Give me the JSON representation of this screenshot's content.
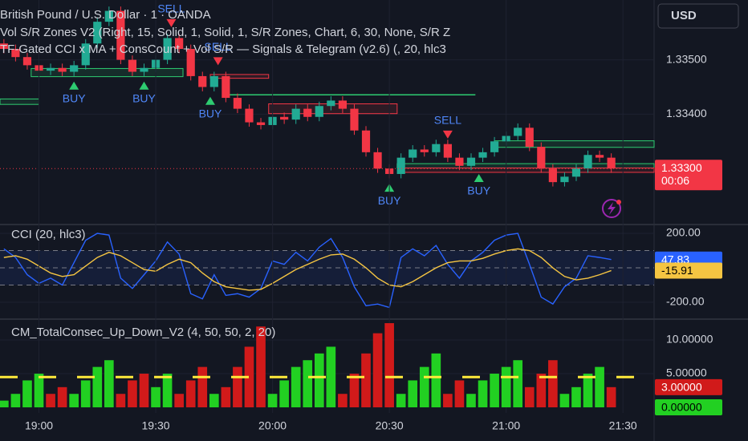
{
  "chart_data": [
    {
      "type": "candlestick",
      "title": "British Pound / U.S. Dollar · 1 · OANDA",
      "indicators": [
        "Vol S/R Zones V2 (Right, 15, Solid, 1, Solid, 1, S/R Zones, Chart, 6, 30, None, S/R Z",
        "TF-Gated CCI x MA + ConsCount + Vol S/R — Signals & Telegram (v2.6) (, 20, hlc3"
      ],
      "currency": "USD",
      "countdown": "00:06",
      "up_color": "#22ab94",
      "down_color": "#f23645",
      "x": [
        "18:51",
        "18:54",
        "18:57",
        "19:00",
        "19:03",
        "19:06",
        "19:09",
        "19:12",
        "19:15",
        "19:18",
        "19:21",
        "19:24",
        "19:27",
        "19:30",
        "19:33",
        "19:36",
        "19:39",
        "19:42",
        "19:45",
        "19:48",
        "19:51",
        "19:54",
        "19:57",
        "20:00",
        "20:03",
        "20:06",
        "20:09",
        "20:12",
        "20:15",
        "20:18",
        "20:21",
        "20:24",
        "20:27",
        "20:30",
        "20:33",
        "20:36",
        "20:39",
        "20:42",
        "20:45",
        "20:48",
        "20:51",
        "20:54",
        "20:57",
        "21:00",
        "21:03",
        "21:06",
        "21:09",
        "21:12",
        "21:15",
        "21:18",
        "21:21",
        "21:24",
        "21:27"
      ],
      "open": [
        1.3353,
        1.3352,
        1.33505,
        1.3349,
        1.3348,
        1.33485,
        1.33478,
        1.3349,
        1.3353,
        1.3357,
        1.3359,
        1.335,
        1.33478,
        1.33485,
        1.335,
        1.3354,
        1.3352,
        1.3347,
        1.3345,
        1.3347,
        1.3343,
        1.3341,
        1.33385,
        1.3338,
        1.33395,
        1.3339,
        1.3341,
        1.33395,
        1.33415,
        1.33425,
        1.3341,
        1.3337,
        1.3333,
        1.333,
        1.3329,
        1.3332,
        1.33335,
        1.3333,
        1.33345,
        1.3332,
        1.33305,
        1.3332,
        1.3333,
        1.3335,
        1.3336,
        1.33375,
        1.3334,
        1.333,
        1.33275,
        1.33285,
        1.333,
        1.33325,
        1.3332
      ],
      "high": [
        1.33538,
        1.33528,
        1.33513,
        1.33498,
        1.33493,
        1.33493,
        1.33498,
        1.33538,
        1.33578,
        1.33598,
        1.33598,
        1.33508,
        1.33493,
        1.33508,
        1.33548,
        1.33548,
        1.33528,
        1.33478,
        1.33478,
        1.33478,
        1.33438,
        1.33418,
        1.33393,
        1.33403,
        1.33403,
        1.33418,
        1.33418,
        1.33423,
        1.33433,
        1.33433,
        1.33418,
        1.33378,
        1.33338,
        1.33308,
        1.33328,
        1.33343,
        1.33343,
        1.33353,
        1.33353,
        1.33328,
        1.33328,
        1.33338,
        1.33358,
        1.33368,
        1.33383,
        1.33383,
        1.33348,
        1.33308,
        1.33293,
        1.33308,
        1.33333,
        1.33333,
        1.33328
      ],
      "low": [
        1.33512,
        1.33497,
        1.33482,
        1.33472,
        1.33472,
        1.3347,
        1.3347,
        1.33482,
        1.33522,
        1.33562,
        1.33492,
        1.3347,
        1.3347,
        1.33477,
        1.33492,
        1.33512,
        1.33462,
        1.33442,
        1.33442,
        1.33422,
        1.33402,
        1.33377,
        1.33372,
        1.33372,
        1.33382,
        1.33382,
        1.33387,
        1.33387,
        1.33407,
        1.33402,
        1.33362,
        1.33322,
        1.33292,
        1.33282,
        1.33282,
        1.33312,
        1.33322,
        1.33322,
        1.33312,
        1.33297,
        1.33297,
        1.33312,
        1.33322,
        1.33342,
        1.33352,
        1.33332,
        1.33292,
        1.33267,
        1.33267,
        1.33277,
        1.33292,
        1.33312,
        1.33292
      ],
      "close": [
        1.3352,
        1.33505,
        1.3349,
        1.3348,
        1.33485,
        1.33478,
        1.3349,
        1.3353,
        1.3357,
        1.3359,
        1.335,
        1.33478,
        1.33485,
        1.335,
        1.3354,
        1.3352,
        1.3347,
        1.3345,
        1.3347,
        1.3343,
        1.3341,
        1.33385,
        1.3338,
        1.33395,
        1.3339,
        1.3341,
        1.33395,
        1.33415,
        1.33425,
        1.3341,
        1.3337,
        1.3333,
        1.333,
        1.3329,
        1.3332,
        1.33335,
        1.3333,
        1.33345,
        1.3332,
        1.33305,
        1.3332,
        1.3333,
        1.3335,
        1.3336,
        1.33375,
        1.3334,
        1.333,
        1.33275,
        1.33285,
        1.333,
        1.33325,
        1.3332,
        1.333
      ],
      "close_labels": [
        null,
        null,
        null,
        null,
        null,
        null,
        null,
        null,
        null,
        null,
        null,
        null,
        null,
        null,
        null,
        null,
        null,
        null,
        null,
        null,
        null,
        null,
        null,
        null,
        null,
        null,
        null,
        null,
        null,
        null,
        null,
        null,
        null,
        null,
        null,
        null,
        null,
        null,
        null,
        null,
        null,
        null,
        null,
        null,
        null,
        null,
        null,
        null,
        null,
        null,
        null,
        null,
        "1.33300"
      ],
      "zones": [
        {
          "x": [
            "18:58",
            "19:37"
          ],
          "y": [
            1.33484,
            1.33469
          ],
          "color": "#2ecc71"
        },
        {
          "x": [
            "18:50",
            "19:00"
          ],
          "y": [
            1.33428,
            1.33418
          ],
          "color": "#2ecc71"
        },
        {
          "x": [
            "19:44",
            "19:59"
          ],
          "y": [
            1.33473,
            1.33466
          ],
          "color": "#f23645"
        },
        {
          "x": [
            "19:48",
            "20:52"
          ],
          "y": [
            1.33436,
            1.33436
          ],
          "color": "#2ecc71"
        },
        {
          "x": [
            "19:59",
            "20:32"
          ],
          "y": [
            1.33419,
            1.33401
          ],
          "color": "#f23645"
        },
        {
          "x": [
            "20:32",
            "21:38"
          ],
          "y": [
            1.33309,
            1.33301
          ],
          "color": "#2ecc71"
        },
        {
          "x": [
            "20:33",
            "21:38"
          ],
          "y": [
            1.33301,
            1.33293
          ],
          "color": "#f23645"
        },
        {
          "x": [
            "20:57",
            "21:38"
          ],
          "y": [
            1.33351,
            1.33339
          ],
          "color": "#2ecc71"
        }
      ],
      "annotations": [
        {
          "text": "BUY",
          "x": "19:09",
          "y": 1.3346,
          "marker": "triangle-up",
          "color": "#2ecc71"
        },
        {
          "text": "BUY",
          "x": "19:27",
          "y": 1.3346,
          "marker": "triangle-up",
          "color": "#2ecc71"
        },
        {
          "text": "SELL",
          "x": "19:34",
          "y": 1.3356,
          "marker": "triangle-down",
          "color": "#f23645"
        },
        {
          "text": "BUY",
          "x": "19:44",
          "y": 1.33432,
          "marker": "triangle-up",
          "color": "#2ecc71"
        },
        {
          "text": "SELL",
          "x": "19:46",
          "y": 1.3349,
          "marker": "triangle-down",
          "color": "#f23645"
        },
        {
          "text": "BUY",
          "x": "20:30",
          "y": 1.33272,
          "marker": "triangle-up",
          "color": "#2ecc71"
        },
        {
          "text": "SELL",
          "x": "20:45",
          "y": 1.33355,
          "marker": "triangle-down",
          "color": "#f23645"
        },
        {
          "text": "BUY",
          "x": "20:53",
          "y": 1.3329,
          "marker": "triangle-up",
          "color": "#2ecc71"
        }
      ],
      "xlim": [
        "18:50",
        "21:38"
      ],
      "ylim": [
        1.332,
        1.3361
      ],
      "yticks": [
        {
          "value": 1.335,
          "label": "1.33500"
        },
        {
          "value": 1.334,
          "label": "1.33400"
        }
      ],
      "grid": true
    },
    {
      "type": "line",
      "title": "CCI (20, hlc3)",
      "x": [
        "18:51",
        "18:54",
        "18:57",
        "19:00",
        "19:03",
        "19:06",
        "19:09",
        "19:12",
        "19:15",
        "19:18",
        "19:21",
        "19:24",
        "19:27",
        "19:30",
        "19:33",
        "19:36",
        "19:39",
        "19:42",
        "19:45",
        "19:48",
        "19:51",
        "19:54",
        "19:57",
        "20:00",
        "20:03",
        "20:06",
        "20:09",
        "20:12",
        "20:15",
        "20:18",
        "20:21",
        "20:24",
        "20:27",
        "20:30",
        "20:33",
        "20:36",
        "20:39",
        "20:42",
        "20:45",
        "20:48",
        "20:51",
        "20:54",
        "20:57",
        "21:00",
        "21:03",
        "21:06",
        "21:09",
        "21:12",
        "21:15",
        "21:18",
        "21:21",
        "21:24",
        "21:27"
      ],
      "series": [
        {
          "color": "#2962ff",
          "values": [
            110,
            60,
            -40,
            -90,
            -60,
            -100,
            30,
            160,
            200,
            190,
            -60,
            -120,
            -40,
            40,
            150,
            80,
            -150,
            -180,
            -40,
            -160,
            -150,
            -170,
            -120,
            40,
            20,
            90,
            40,
            120,
            170,
            60,
            -110,
            -220,
            -210,
            -230,
            60,
            110,
            70,
            130,
            20,
            -60,
            40,
            90,
            160,
            190,
            200,
            20,
            -170,
            -210,
            -110,
            -60,
            70,
            60,
            47.83
          ]
        },
        {
          "color": "#f5c542",
          "values": [
            60,
            70,
            50,
            10,
            -30,
            -50,
            -40,
            10,
            60,
            90,
            70,
            30,
            -10,
            -20,
            20,
            50,
            30,
            -30,
            -80,
            -110,
            -120,
            -130,
            -125,
            -90,
            -50,
            -10,
            20,
            50,
            75,
            80,
            50,
            0,
            -60,
            -100,
            -110,
            -80,
            -40,
            0,
            30,
            40,
            40,
            55,
            80,
            100,
            110,
            100,
            60,
            0,
            -50,
            -70,
            -60,
            -40,
            -15.91
          ]
        }
      ],
      "levels": [
        100,
        0,
        -100
      ],
      "xlim": [
        "18:50",
        "21:38"
      ],
      "ylim": [
        -293,
        242
      ],
      "yticks": [
        {
          "value": 200,
          "label": "200.00"
        },
        {
          "value": -200,
          "label": "-200.00"
        }
      ],
      "grid": true
    },
    {
      "type": "bar",
      "title": "CM_TotalConsec_Up_Down_V2 (4, 50, 50, 2, 20)",
      "x": [
        "18:51",
        "18:54",
        "18:57",
        "19:00",
        "19:03",
        "19:06",
        "19:09",
        "19:12",
        "19:15",
        "19:18",
        "19:21",
        "19:24",
        "19:27",
        "19:30",
        "19:33",
        "19:36",
        "19:39",
        "19:42",
        "19:45",
        "19:48",
        "19:51",
        "19:54",
        "19:57",
        "20:00",
        "20:03",
        "20:06",
        "20:09",
        "20:12",
        "20:15",
        "20:18",
        "20:21",
        "20:24",
        "20:27",
        "20:30",
        "20:33",
        "20:36",
        "20:39",
        "20:42",
        "20:45",
        "20:48",
        "20:51",
        "20:54",
        "20:57",
        "21:00",
        "21:03",
        "21:06",
        "21:09",
        "21:12",
        "21:15",
        "21:18",
        "21:21",
        "21:24",
        "21:27"
      ],
      "series": [
        {
          "color": "#22d022",
          "values": [
            1,
            2,
            4,
            5,
            null,
            null,
            2,
            4,
            6,
            7,
            null,
            null,
            null,
            3,
            5,
            null,
            null,
            null,
            2,
            null,
            null,
            null,
            null,
            2,
            4,
            6,
            7,
            8,
            9,
            null,
            null,
            null,
            null,
            null,
            2,
            4,
            6,
            8,
            null,
            null,
            2,
            4,
            5,
            6,
            7,
            null,
            null,
            null,
            2,
            3,
            5,
            6,
            0
          ],
          "value_labels": [
            null,
            null,
            null,
            null,
            null,
            null,
            null,
            null,
            null,
            null,
            null,
            null,
            null,
            null,
            null,
            null,
            null,
            null,
            null,
            null,
            null,
            null,
            null,
            null,
            null,
            null,
            null,
            null,
            null,
            null,
            null,
            null,
            null,
            null,
            null,
            null,
            null,
            null,
            null,
            null,
            null,
            null,
            null,
            null,
            null,
            null,
            null,
            null,
            null,
            null,
            null,
            null,
            "0.00000"
          ]
        },
        {
          "color": "#d11a1a",
          "values": [
            null,
            null,
            null,
            null,
            2,
            3,
            null,
            null,
            null,
            null,
            2,
            4,
            5,
            null,
            null,
            2,
            4,
            6,
            null,
            3,
            6,
            9,
            12,
            null,
            null,
            null,
            null,
            null,
            null,
            2,
            5,
            8,
            11,
            12.5,
            null,
            null,
            null,
            null,
            2,
            4,
            null,
            null,
            null,
            null,
            null,
            3,
            5,
            7,
            null,
            null,
            null,
            null,
            3
          ],
          "value_labels": [
            null,
            null,
            null,
            null,
            null,
            null,
            null,
            null,
            null,
            null,
            null,
            null,
            null,
            null,
            null,
            null,
            null,
            null,
            null,
            null,
            null,
            null,
            null,
            null,
            null,
            null,
            null,
            null,
            null,
            null,
            null,
            null,
            null,
            null,
            null,
            null,
            null,
            null,
            null,
            null,
            null,
            null,
            null,
            null,
            null,
            null,
            null,
            null,
            null,
            null,
            null,
            null,
            "3.00000"
          ]
        }
      ],
      "hline": {
        "value": 4.5,
        "color": "#ffeb3b"
      },
      "xlim": [
        "18:50",
        "21:38"
      ],
      "xticks": [
        "19:00",
        "19:30",
        "20:00",
        "20:30",
        "21:00",
        "21:30"
      ],
      "ylim": [
        -0.83,
        12.86
      ],
      "yticks": [
        {
          "value": 10,
          "label": "10.00000"
        },
        {
          "value": 5,
          "label": "5.00000"
        }
      ],
      "grid": true
    }
  ]
}
